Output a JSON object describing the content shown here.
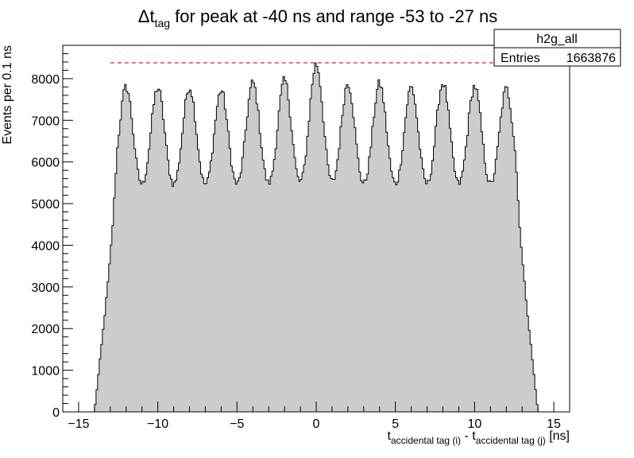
{
  "chart_data": {
    "type": "bar",
    "title": {
      "delta": "Δ",
      "t": "t",
      "sub": "tag",
      "rest": " for peak at -40 ns and range -53 to -27 ns"
    },
    "xlabel": {
      "t1": "t",
      "sub1": "accidental tag (i)",
      "mid": " - t",
      "sub2": "accidental tag (j)",
      "unit": " [ns]"
    },
    "ylabel": "Events per 0.1 ns",
    "xlim": [
      -16,
      16
    ],
    "ylim": [
      0,
      8800
    ],
    "x_ticks": [
      -15,
      -10,
      -5,
      0,
      5,
      10,
      15
    ],
    "x_tick_labels": [
      "−15",
      "−10",
      "−5",
      "0",
      "5",
      "10",
      "15"
    ],
    "y_ticks": [
      0,
      1000,
      2000,
      3000,
      4000,
      5000,
      6000,
      7000,
      8000
    ],
    "y_tick_labels": [
      "0",
      "1000",
      "2000",
      "3000",
      "4000",
      "5000",
      "6000",
      "7000",
      "8000"
    ],
    "bin_width": 0.1,
    "histogram": {
      "range": [
        -14.2,
        14.2
      ],
      "rise": [
        -14.0,
        -12.6
      ],
      "fall": [
        12.6,
        14.0
      ],
      "baseline": 5000,
      "peak_width": 0.45,
      "peaks": [
        {
          "x": -12,
          "y": 7800
        },
        {
          "x": -10,
          "y": 7780
        },
        {
          "x": -8,
          "y": 7800
        },
        {
          "x": -6,
          "y": 7720
        },
        {
          "x": -4,
          "y": 7900
        },
        {
          "x": -2,
          "y": 7950
        },
        {
          "x": 0,
          "y": 8350
        },
        {
          "x": 2,
          "y": 7900
        },
        {
          "x": 4,
          "y": 7880
        },
        {
          "x": 6,
          "y": 7800
        },
        {
          "x": 8,
          "y": 7900
        },
        {
          "x": 10,
          "y": 7820
        },
        {
          "x": 12,
          "y": 7750
        }
      ]
    },
    "reference_line": {
      "y": 8380,
      "x_range": [
        -13,
        13
      ],
      "color": "#d62728"
    },
    "fill_color": "#cccccc",
    "line_color": "#000000",
    "grid": false,
    "legend": "top-right"
  },
  "stats_box": {
    "name": "h2g_all",
    "entries_label": "Entries",
    "entries_value": "1663876"
  }
}
